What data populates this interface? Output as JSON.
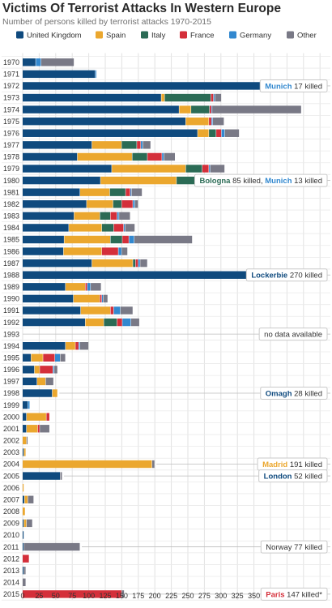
{
  "header": {
    "title": "Victims Of Terrorist Attacks In Western Europe",
    "subtitle": "Number of persons killed by terrorist attacks 1970-2015"
  },
  "colors": {
    "United Kingdom": "#0f4a7e",
    "Spain": "#eba72e",
    "Italy": "#2b6b55",
    "France": "#d42f3a",
    "Germany": "#3288cf",
    "Other": "#797986"
  },
  "chart_data": {
    "type": "bar",
    "orientation": "horizontal",
    "stacked": true,
    "title": "Victims Of Terrorist Attacks In Western Europe",
    "subtitle": "Number of persons killed by terrorist attacks 1970-2015",
    "series_names": [
      "United Kingdom",
      "Spain",
      "Italy",
      "France",
      "Germany",
      "Other"
    ],
    "xlim": [
      0,
      450
    ],
    "xticks": [
      0,
      25,
      50,
      75,
      100,
      125,
      150,
      175,
      200,
      225,
      250,
      275,
      300,
      325,
      350,
      375,
      400,
      425,
      450
    ],
    "grid": true,
    "legend_position": "top",
    "rows": [
      {
        "year": "1970",
        "values": [
          20,
          0,
          0,
          0,
          8,
          50
        ]
      },
      {
        "year": "1971",
        "values": [
          110,
          0,
          0,
          0,
          2,
          0
        ]
      },
      {
        "year": "1972",
        "values": [
          370,
          0,
          3,
          0,
          20,
          10
        ]
      },
      {
        "year": "1973",
        "values": [
          210,
          5,
          70,
          4,
          2,
          10
        ]
      },
      {
        "year": "1974",
        "values": [
          237,
          18,
          28,
          3,
          1,
          135
        ]
      },
      {
        "year": "1975",
        "values": [
          247,
          35,
          0,
          4,
          2,
          17
        ]
      },
      {
        "year": "1976",
        "values": [
          265,
          17,
          11,
          8,
          5,
          22
        ]
      },
      {
        "year": "1977",
        "values": [
          105,
          45,
          23,
          6,
          3,
          12
        ]
      },
      {
        "year": "1978",
        "values": [
          83,
          83,
          23,
          22,
          3,
          17
        ]
      },
      {
        "year": "1979",
        "values": [
          135,
          112,
          25,
          10,
          2,
          22
        ]
      },
      {
        "year": "1980",
        "values": [
          118,
          115,
          123,
          21,
          17,
          25
        ]
      },
      {
        "year": "1981",
        "values": [
          87,
          45,
          24,
          7,
          2,
          16
        ]
      },
      {
        "year": "1982",
        "values": [
          97,
          40,
          13,
          17,
          3,
          5
        ]
      },
      {
        "year": "1983",
        "values": [
          78,
          39,
          16,
          10,
          3,
          17
        ]
      },
      {
        "year": "1984",
        "values": [
          70,
          50,
          18,
          15,
          2,
          15
        ]
      },
      {
        "year": "1985",
        "values": [
          63,
          70,
          18,
          10,
          8,
          88
        ]
      },
      {
        "year": "1986",
        "values": [
          62,
          58,
          0,
          25,
          5,
          9
        ]
      },
      {
        "year": "1987",
        "values": [
          105,
          62,
          4,
          4,
          3,
          11
        ]
      },
      {
        "year": "1988",
        "values": [
          375,
          25,
          5,
          6,
          5,
          29
        ]
      },
      {
        "year": "1989",
        "values": [
          65,
          30,
          0,
          3,
          5,
          16
        ]
      },
      {
        "year": "1990",
        "values": [
          77,
          40,
          0,
          3,
          2,
          7
        ]
      },
      {
        "year": "1991",
        "values": [
          88,
          45,
          0,
          5,
          10,
          19
        ]
      },
      {
        "year": "1992",
        "values": [
          95,
          28,
          20,
          8,
          13,
          13
        ]
      },
      {
        "year": "1993",
        "values": [
          0,
          0,
          0,
          0,
          0,
          0
        ]
      },
      {
        "year": "1994",
        "values": [
          65,
          15,
          0,
          5,
          2,
          13
        ]
      },
      {
        "year": "1995",
        "values": [
          13,
          18,
          0,
          18,
          8,
          8
        ]
      },
      {
        "year": "1996",
        "values": [
          18,
          8,
          0,
          20,
          2,
          5
        ]
      },
      {
        "year": "1997",
        "values": [
          22,
          13,
          0,
          0,
          0,
          12
        ]
      },
      {
        "year": "1998",
        "values": [
          45,
          8,
          0,
          0,
          0,
          0
        ]
      },
      {
        "year": "1999",
        "values": [
          8,
          0,
          0,
          0,
          3,
          0
        ]
      },
      {
        "year": "2000",
        "values": [
          6,
          30,
          0,
          5,
          0,
          0
        ]
      },
      {
        "year": "2001",
        "values": [
          6,
          17,
          0,
          3,
          0,
          15
        ]
      },
      {
        "year": "2002",
        "values": [
          0,
          6,
          0,
          0,
          0,
          2
        ]
      },
      {
        "year": "2003",
        "values": [
          2,
          3,
          0,
          0,
          0,
          0
        ]
      },
      {
        "year": "2004",
        "values": [
          0,
          196,
          0,
          0,
          0,
          4
        ]
      },
      {
        "year": "2005",
        "values": [
          57,
          0,
          0,
          0,
          0,
          3
        ]
      },
      {
        "year": "2006",
        "values": [
          0,
          2,
          0,
          0,
          0,
          0
        ]
      },
      {
        "year": "2007",
        "values": [
          3,
          5,
          0,
          0,
          0,
          9
        ]
      },
      {
        "year": "2008",
        "values": [
          0,
          4,
          0,
          0,
          0,
          0
        ]
      },
      {
        "year": "2009",
        "values": [
          2,
          4,
          0,
          0,
          0,
          9
        ]
      },
      {
        "year": "2010",
        "values": [
          2,
          0,
          0,
          0,
          0,
          0
        ]
      },
      {
        "year": "2011",
        "values": [
          2,
          0,
          0,
          0,
          0,
          85
        ]
      },
      {
        "year": "2012",
        "values": [
          0,
          0,
          0,
          10,
          0,
          0
        ]
      },
      {
        "year": "2013",
        "values": [
          2,
          0,
          0,
          0,
          0,
          3
        ]
      },
      {
        "year": "2014",
        "values": [
          0,
          0,
          0,
          0,
          0,
          5
        ]
      },
      {
        "year": "2015",
        "values": [
          0,
          0,
          0,
          150,
          0,
          4
        ]
      }
    ],
    "annotations": [
      {
        "year": "1972",
        "parts": [
          {
            "text": "Munich",
            "color": "#3288cf",
            "bold": true
          },
          {
            "text": " 17 killed",
            "color": "#333333"
          }
        ]
      },
      {
        "year": "1980",
        "parts": [
          {
            "text": "Bologna",
            "color": "#2b6b55",
            "bold": true
          },
          {
            "text": " 85 killed, ",
            "color": "#333333"
          },
          {
            "text": "Munich",
            "color": "#3288cf",
            "bold": true
          },
          {
            "text": " 13 killed",
            "color": "#333333"
          }
        ]
      },
      {
        "year": "1988",
        "parts": [
          {
            "text": "Lockerbie",
            "color": "#0f4a7e",
            "bold": true
          },
          {
            "text": " 270 killed",
            "color": "#333333"
          }
        ]
      },
      {
        "year": "1993",
        "parts": [
          {
            "text": "no data available",
            "color": "#333333"
          }
        ]
      },
      {
        "year": "1998",
        "parts": [
          {
            "text": "Omagh",
            "color": "#0f4a7e",
            "bold": true
          },
          {
            "text": " 28 killed",
            "color": "#333333"
          }
        ]
      },
      {
        "year": "2004",
        "parts": [
          {
            "text": "Madrid",
            "color": "#eba72e",
            "bold": true
          },
          {
            "text": " 191 killed",
            "color": "#333333"
          }
        ]
      },
      {
        "year": "2005",
        "parts": [
          {
            "text": "London",
            "color": "#0f4a7e",
            "bold": true
          },
          {
            "text": " 52 killed",
            "color": "#333333"
          }
        ]
      },
      {
        "year": "2011",
        "parts": [
          {
            "text": "Norway 77 killed",
            "color": "#333333"
          }
        ]
      },
      {
        "year": "2015",
        "parts": [
          {
            "text": "Paris",
            "color": "#d42f3a",
            "bold": true
          },
          {
            "text": " 147 killed*",
            "color": "#333333"
          }
        ]
      }
    ]
  }
}
